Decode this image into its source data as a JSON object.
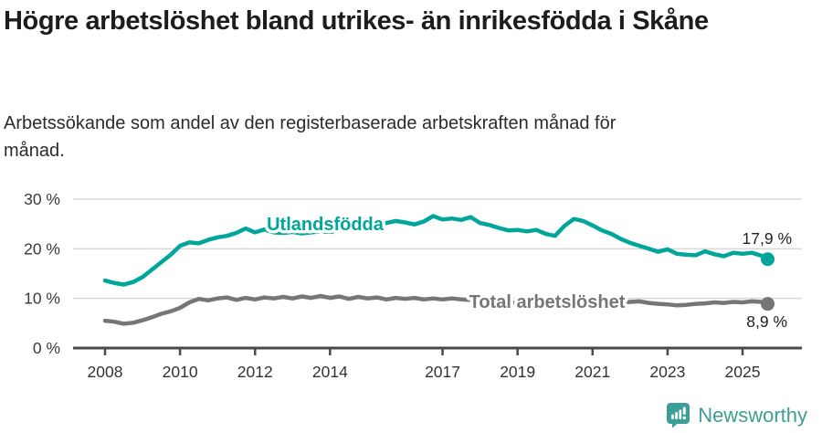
{
  "header": {
    "title": "Högre arbetslöshet bland utrikes- än inrikesfödda i Skåne",
    "subtitle": "Arbetssökande som andel av den registerbaserade arbetskraften månad för månad."
  },
  "chart_data": {
    "type": "line",
    "title": "Högre arbetslöshet bland utrikes- än inrikesfödda i Skåne",
    "subtitle": "Arbetssökande som andel av den registerbaserade arbetskraften månad för månad.",
    "unit": "%",
    "xlabel": "",
    "ylabel": "",
    "ylim": [
      0,
      30
    ],
    "xlim": [
      2007.2,
      2026.5
    ],
    "grid": true,
    "legend_position": "inline-labels",
    "y_ticks": [
      {
        "value": 0,
        "label": "0 %"
      },
      {
        "value": 10,
        "label": "10 %"
      },
      {
        "value": 20,
        "label": "20 %"
      },
      {
        "value": 30,
        "label": "30 %"
      }
    ],
    "x_ticks": [
      "2008",
      "2010",
      "2012",
      "2014",
      "2017",
      "2019",
      "2021",
      "2023",
      "2025"
    ],
    "x_tick_values": [
      2008,
      2010,
      2012,
      2014,
      2017,
      2019,
      2021,
      2023,
      2025
    ],
    "x": [
      2008,
      2008.25,
      2008.5,
      2008.75,
      2009,
      2009.25,
      2009.5,
      2009.75,
      2010,
      2010.25,
      2010.5,
      2010.75,
      2011,
      2011.25,
      2011.5,
      2011.75,
      2012,
      2012.25,
      2012.5,
      2012.75,
      2013,
      2013.25,
      2013.5,
      2013.75,
      2014,
      2014.25,
      2014.5,
      2014.75,
      2015,
      2015.25,
      2015.5,
      2015.75,
      2016,
      2016.25,
      2016.5,
      2016.75,
      2017,
      2017.25,
      2017.5,
      2017.75,
      2018,
      2018.25,
      2018.5,
      2018.75,
      2019,
      2019.25,
      2019.5,
      2019.75,
      2020,
      2020.25,
      2020.5,
      2020.75,
      2021,
      2021.25,
      2021.5,
      2021.75,
      2022,
      2022.25,
      2022.5,
      2022.75,
      2023,
      2023.25,
      2023.5,
      2023.75,
      2024,
      2024.25,
      2024.5,
      2024.75,
      2025,
      2025.25,
      2025.5,
      2025.67
    ],
    "series": [
      {
        "name": "Utlandsfödda",
        "color": "#00a69a",
        "end_label": "17,9 %",
        "end_value": 17.9,
        "values": [
          13.6,
          13.1,
          12.8,
          13.3,
          14.3,
          15.8,
          17.3,
          18.8,
          20.6,
          21.3,
          21.1,
          21.8,
          22.3,
          22.6,
          23.2,
          24.1,
          23.3,
          23.9,
          23.3,
          23.2,
          23.4,
          23.1,
          23.3,
          23.5,
          23.4,
          23.7,
          24.0,
          24.4,
          24.6,
          24.9,
          25.2,
          25.6,
          25.3,
          24.9,
          25.5,
          26.6,
          25.9,
          26.1,
          25.8,
          26.4,
          25.2,
          24.8,
          24.2,
          23.7,
          23.8,
          23.5,
          23.8,
          23.0,
          22.6,
          24.6,
          26.0,
          25.6,
          24.7,
          23.7,
          23.0,
          22.0,
          21.2,
          20.6,
          20.0,
          19.4,
          19.9,
          19.0,
          18.8,
          18.7,
          19.5,
          18.9,
          18.5,
          19.2,
          19.0,
          19.2,
          18.6,
          17.9
        ]
      },
      {
        "name": "Total arbetslöshet",
        "color": "#767676",
        "end_label": "8,9 %",
        "end_value": 8.9,
        "values": [
          5.5,
          5.3,
          4.9,
          5.1,
          5.6,
          6.2,
          6.9,
          7.4,
          8.1,
          9.2,
          9.9,
          9.6,
          10.0,
          10.2,
          9.7,
          10.1,
          9.8,
          10.2,
          10.0,
          10.3,
          10.0,
          10.4,
          10.1,
          10.5,
          10.1,
          10.4,
          9.9,
          10.3,
          10.0,
          10.2,
          9.8,
          10.1,
          9.9,
          10.1,
          9.8,
          10.0,
          9.8,
          10.0,
          9.8,
          9.7,
          9.5,
          9.4,
          9.3,
          9.2,
          9.1,
          9.0,
          9.1,
          9.2,
          9.4,
          9.7,
          9.8,
          9.6,
          9.5,
          9.4,
          9.3,
          9.2,
          9.3,
          9.4,
          9.1,
          8.9,
          8.8,
          8.6,
          8.7,
          8.9,
          9.0,
          9.2,
          9.1,
          9.3,
          9.2,
          9.4,
          9.3,
          8.9
        ]
      }
    ]
  },
  "footer": {
    "brand": "Newsworthy",
    "brand_color": "#3d9e97"
  }
}
